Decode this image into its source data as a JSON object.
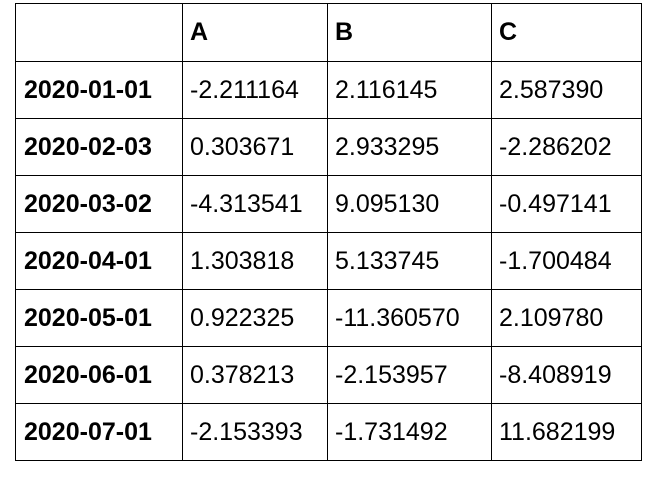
{
  "table": {
    "columns": [
      "A",
      "B",
      "C"
    ],
    "rows": [
      {
        "index": "2020-01-01",
        "cells": [
          "-2.211164",
          "2.116145",
          "2.587390"
        ]
      },
      {
        "index": "2020-02-03",
        "cells": [
          "0.303671",
          "2.933295",
          "-2.286202"
        ]
      },
      {
        "index": "2020-03-02",
        "cells": [
          "-4.313541",
          "9.095130",
          "-0.497141"
        ]
      },
      {
        "index": "2020-04-01",
        "cells": [
          "1.303818",
          "5.133745",
          "-1.700484"
        ]
      },
      {
        "index": "2020-05-01",
        "cells": [
          "0.922325",
          "-11.360570",
          "2.109780"
        ]
      },
      {
        "index": "2020-06-01",
        "cells": [
          "0.378213",
          "-2.153957",
          "-8.408919"
        ]
      },
      {
        "index": "2020-07-01",
        "cells": [
          "-2.153393",
          "-1.731492",
          "11.682199"
        ]
      }
    ]
  }
}
